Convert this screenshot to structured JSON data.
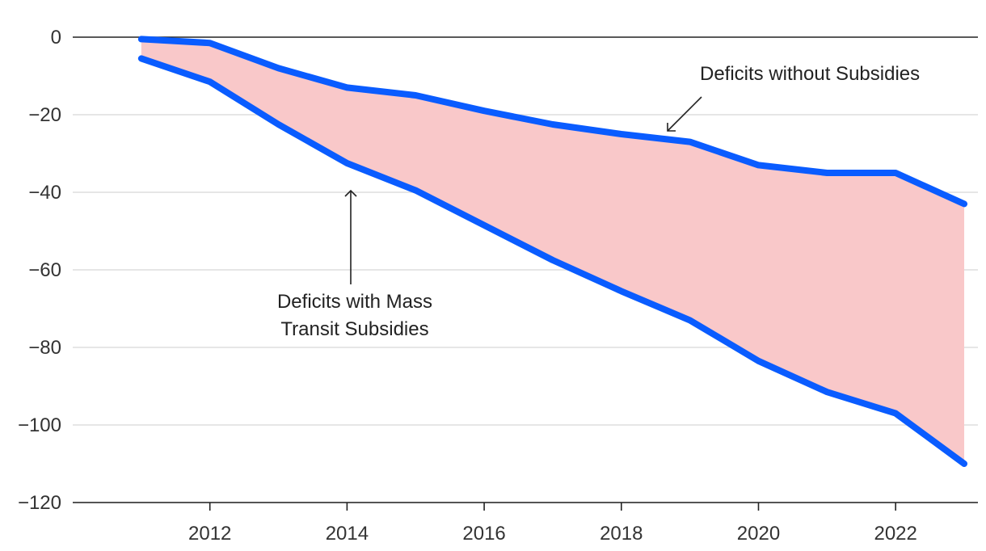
{
  "chart_data": {
    "type": "area",
    "title": "",
    "xlabel": "",
    "ylabel": "",
    "x": [
      2011,
      2012,
      2013,
      2014,
      2015,
      2016,
      2017,
      2018,
      2019,
      2020,
      2021,
      2022,
      2023
    ],
    "series": [
      {
        "name": "Deficits without Subsidies",
        "values": [
          -0.5,
          -1.5,
          -8,
          -13,
          -15,
          -19,
          -22.5,
          -25,
          -27,
          -33,
          -35,
          -35,
          -43
        ]
      },
      {
        "name": "Deficits with Mass Transit Subsidies",
        "values": [
          -5.5,
          -11.5,
          -22.5,
          -32.5,
          -39.5,
          -48.5,
          -57.5,
          -65.5,
          -73,
          -83.5,
          -91.5,
          -97,
          -110
        ]
      }
    ],
    "xlim": [
      2010,
      2023.2
    ],
    "ylim": [
      -120,
      0
    ],
    "x_ticks": [
      "2012",
      "2014",
      "2016",
      "2018",
      "2020",
      "2022"
    ],
    "y_ticks": [
      "0",
      "−20",
      "−40",
      "−60",
      "−80",
      "−100",
      "−120"
    ],
    "annotations": {
      "without": "Deficits without Subsidies",
      "with_line1": "Deficits with Mass",
      "with_line2": "Transit Subsidies"
    },
    "colors": {
      "line": "#0a5cff",
      "fill": "#f9c8c9",
      "grid": "#dddddd",
      "zero": "#222222",
      "arrow": "#222222"
    }
  }
}
